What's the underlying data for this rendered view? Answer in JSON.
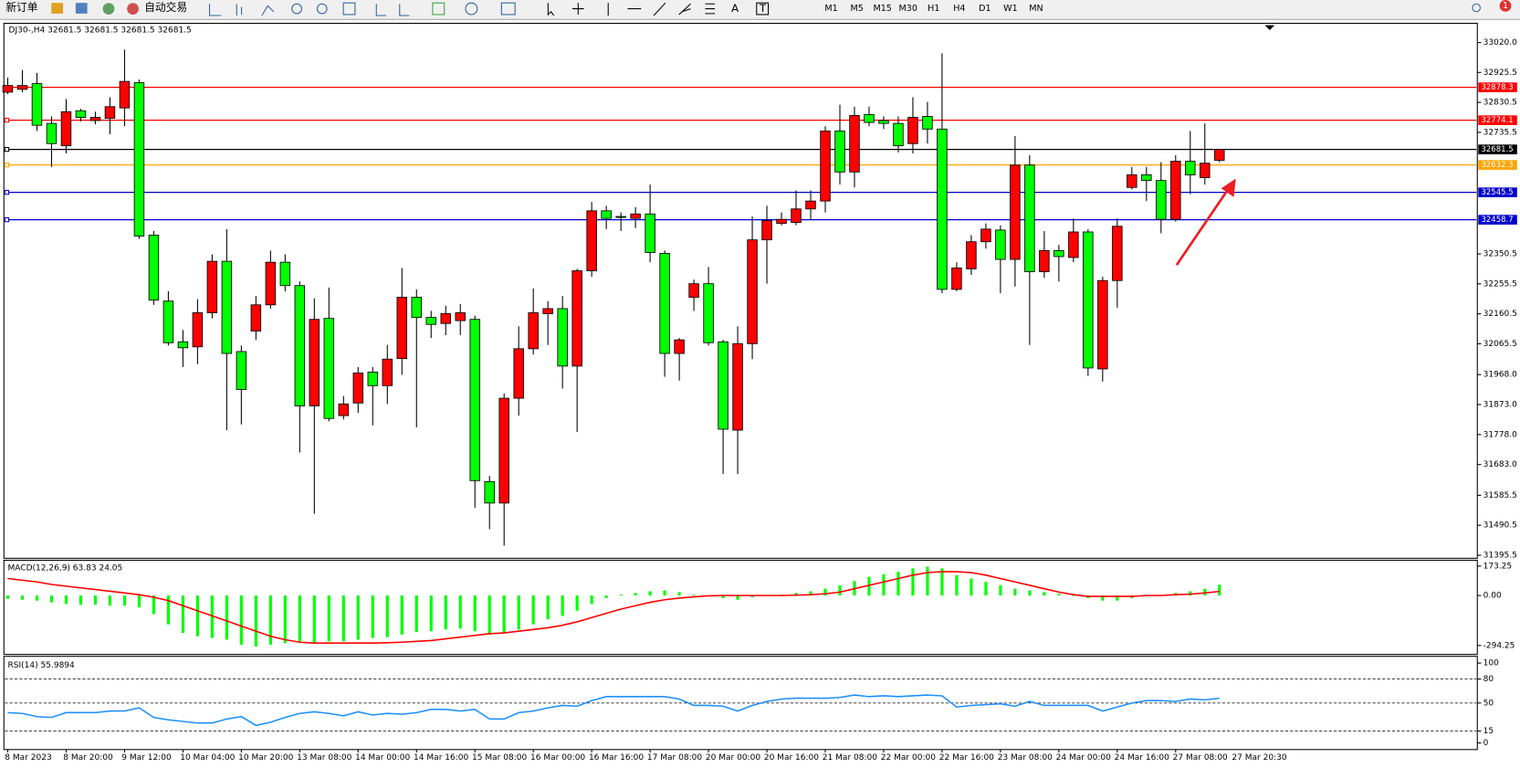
{
  "toolbar": {
    "new_order": "新订单",
    "auto_trade": "自动交易",
    "tools": [
      "A",
      "T"
    ],
    "timeframes": [
      "M1",
      "M5",
      "M15",
      "M30",
      "H1",
      "H4",
      "D1",
      "W1",
      "MN"
    ],
    "badge": "1"
  },
  "chart_data": [
    {
      "type": "candlestick",
      "title": "DJ30-,H4 32681.5 32681.5 32681.5 32681.5",
      "categories": [
        "8 Mar 2023",
        null,
        null,
        null,
        "8 Mar 20:00",
        null,
        null,
        null,
        "9 Mar 12:00",
        null,
        null,
        null,
        "10 Mar 04:00",
        null,
        null,
        null,
        "10 Mar 20:00",
        null,
        null,
        null,
        "13 Mar 08:00",
        null,
        null,
        null,
        "14 Mar 00:00",
        null,
        null,
        null,
        "14 Mar 16:00",
        null,
        null,
        null,
        "15 Mar 08:00",
        null,
        null,
        null,
        "16 Mar 00:00",
        null,
        null,
        null,
        "16 Mar 16:00",
        null,
        null,
        null,
        "17 Mar 08:00",
        null,
        null,
        null,
        "20 Mar 00:00",
        null,
        null,
        null,
        "20 Mar 16:00",
        null,
        null,
        null,
        "21 Mar 08:00",
        null,
        null,
        null,
        "22 Mar 00:00",
        null,
        null,
        null,
        "22 Mar 16:00",
        null,
        null,
        null,
        "23 Mar 08:00",
        null,
        null,
        null,
        "24 Mar 00:00",
        null,
        null,
        null,
        "24 Mar 16:00",
        null,
        null,
        null,
        "27 Mar 08:00",
        null,
        null,
        null
      ],
      "cursor_label": "27 Mar 20:30",
      "open": [
        32863,
        32872,
        32890,
        32764,
        32693,
        32804,
        32773,
        32780,
        32813,
        32893,
        32410,
        32201,
        32072,
        32056,
        32164,
        32327,
        32041,
        32106,
        32189,
        32324,
        32250,
        31869,
        32146,
        31838,
        31878,
        31976,
        31933,
        32019,
        32213,
        32149,
        32130,
        32139,
        32143,
        31629,
        31561,
        31893,
        32050,
        32161,
        32177,
        31995,
        32297,
        32487,
        32469,
        32463,
        32477,
        32352,
        32035,
        32213,
        32256,
        32072,
        31792,
        32066,
        32395,
        32447,
        32450,
        32493,
        32518,
        32740,
        32610,
        32792,
        32773,
        32764,
        32700,
        32786,
        32746,
        32238,
        32303,
        32389,
        32426,
        32333,
        32632,
        32294,
        32361,
        32339,
        32420,
        31986,
        32266,
        32561,
        32601,
        32583,
        32460,
        32644,
        32592,
        32647
      ],
      "high": [
        32909,
        32933,
        32924,
        32786,
        32841,
        32810,
        32801,
        32847,
        32998,
        32903,
        32423,
        32232,
        32109,
        32207,
        32349,
        32429,
        32060,
        32217,
        32361,
        32349,
        32263,
        32210,
        32244,
        31900,
        31992,
        31992,
        32062,
        32306,
        32238,
        32170,
        32186,
        32192,
        32155,
        31647,
        31908,
        32121,
        32241,
        32201,
        32217,
        32303,
        32515,
        32503,
        32482,
        32499,
        32570,
        32361,
        32084,
        32269,
        32309,
        32078,
        32121,
        32469,
        32503,
        32482,
        32552,
        32552,
        32755,
        32823,
        32817,
        32817,
        32786,
        32786,
        32847,
        32832,
        32986,
        32324,
        32410,
        32447,
        32441,
        32724,
        32663,
        32423,
        32379,
        32463,
        32429,
        32278,
        32463,
        32626,
        32626,
        32641,
        32663,
        32740,
        32764,
        32681.5
      ],
      "low": [
        32857,
        32863,
        32740,
        32626,
        32669,
        32770,
        32761,
        32730,
        32755,
        32398,
        32189,
        32060,
        31992,
        32001,
        32146,
        31792,
        31810,
        32078,
        32177,
        32232,
        31721,
        31527,
        31820,
        31826,
        31847,
        31807,
        31875,
        31967,
        31801,
        32084,
        32093,
        32093,
        31546,
        31478,
        31426,
        31838,
        32032,
        32062,
        31924,
        31786,
        32278,
        32429,
        32423,
        32432,
        32324,
        31961,
        31949,
        32170,
        32060,
        31653,
        31653,
        32017,
        32256,
        32441,
        32441,
        32460,
        32482,
        32570,
        32561,
        32755,
        32746,
        32672,
        32669,
        32700,
        32226,
        32232,
        32284,
        32367,
        32226,
        32247,
        32062,
        32275,
        32263,
        32324,
        31964,
        31946,
        32180,
        32555,
        32518,
        32416,
        32453,
        32540,
        32570,
        32641
      ],
      "close": [
        32884,
        32884,
        32758,
        32700,
        32801,
        32783,
        32783,
        32817,
        32897,
        32407,
        32204,
        32069,
        32053,
        32164,
        32327,
        32035,
        31921,
        32189,
        32324,
        32250,
        31869,
        32143,
        31829,
        31875,
        31973,
        31933,
        32017,
        32213,
        32149,
        32127,
        32161,
        32164,
        31632,
        31561,
        31893,
        32050,
        32164,
        32177,
        31995,
        32297,
        32487,
        32463,
        32466,
        32477,
        32355,
        32035,
        32078,
        32256,
        32069,
        31795,
        32066,
        32395,
        32456,
        32460,
        32493,
        32518,
        32740,
        32610,
        32789,
        32767,
        32764,
        32693,
        32783,
        32746,
        32238,
        32306,
        32389,
        32429,
        32333,
        32632,
        32294,
        32361,
        32342,
        32420,
        31989,
        32266,
        32438,
        32601,
        32583,
        32460,
        32644,
        32601,
        32638,
        32681.5
      ],
      "up_color": "#ff0000",
      "down_color": "#00ff00",
      "ylim": [
        31389,
        33075
      ],
      "yticks": [
        {
          "value": 33020,
          "label": "33020.0"
        },
        32925.5,
        32830.5,
        32735.5,
        32350.5,
        32255.5,
        32160.5,
        32065.5,
        {
          "value": 31968,
          "label": "31968.0"
        },
        {
          "value": 31873,
          "label": "31873.0"
        },
        {
          "value": 31778,
          "label": "31778.0"
        },
        {
          "value": 31683,
          "label": "31683.0"
        },
        31585.5,
        31490.5,
        31395.5
      ],
      "hlines": [
        {
          "value": 32878.3,
          "color": "#ff0000"
        },
        {
          "value": 32774.1,
          "color": "#ff0000"
        },
        {
          "value": 32681.5,
          "color": "#000000"
        },
        {
          "value": 32632.3,
          "color": "#ffa500"
        },
        {
          "value": 32545.5,
          "color": "#0000cd"
        },
        {
          "value": 32458.7,
          "color": "#0000cd"
        }
      ]
    },
    {
      "type": "macd",
      "title": "MACD(12,26,9) 63.83 24.05",
      "histogram": {
        "color": "#00ff00",
        "values": [
          -20,
          -25,
          -30,
          -40,
          -50,
          -55,
          -55,
          -60,
          -60,
          -70,
          -110,
          -170,
          -220,
          -240,
          -250,
          -260,
          -290,
          -300,
          -290,
          -280,
          -270,
          -280,
          -270,
          -270,
          -260,
          -250,
          -245,
          -230,
          -215,
          -210,
          -200,
          -195,
          -210,
          -230,
          -220,
          -200,
          -170,
          -140,
          -120,
          -90,
          -50,
          -15,
          5,
          15,
          25,
          30,
          20,
          5,
          0,
          -15,
          -25,
          -10,
          0,
          5,
          15,
          25,
          40,
          60,
          85,
          110,
          125,
          140,
          160,
          170,
          160,
          120,
          100,
          80,
          60,
          40,
          30,
          20,
          10,
          0,
          -15,
          -30,
          -30,
          -15,
          -5,
          0,
          15,
          25,
          40,
          63.83
        ]
      },
      "signal": {
        "color": "#ff0000",
        "values": [
          100,
          90,
          80,
          65,
          55,
          45,
          35,
          25,
          15,
          5,
          -10,
          -30,
          -60,
          -90,
          -120,
          -150,
          -180,
          -210,
          -240,
          -260,
          -275,
          -280,
          -280,
          -280,
          -280,
          -280,
          -278,
          -275,
          -270,
          -265,
          -255,
          -245,
          -235,
          -225,
          -220,
          -210,
          -200,
          -190,
          -175,
          -155,
          -130,
          -105,
          -80,
          -60,
          -40,
          -25,
          -15,
          -8,
          -2,
          0,
          0,
          0,
          0,
          0,
          2,
          5,
          10,
          20,
          40,
          60,
          80,
          100,
          120,
          135,
          140,
          140,
          135,
          120,
          100,
          80,
          60,
          40,
          20,
          5,
          -5,
          -5,
          -5,
          -5,
          0,
          0,
          5,
          8,
          15,
          24.05
        ]
      },
      "ylim": [
        -341,
        202
      ],
      "yticks": [
        173.25,
        {
          "value": 0,
          "label": "0.00"
        },
        -294.25
      ]
    },
    {
      "type": "rsi",
      "title": "RSI(14) 55.9894",
      "color": "#1e90ff",
      "values": [
        38,
        37,
        33,
        32,
        38,
        38,
        38,
        40,
        40,
        44,
        32,
        29,
        27,
        25,
        25,
        30,
        33,
        22,
        26,
        32,
        37,
        39,
        37,
        34,
        39,
        35,
        37,
        36,
        38,
        42,
        42,
        40,
        42,
        30,
        30,
        38,
        40,
        44,
        47,
        46,
        53,
        58,
        58,
        58,
        58,
        58,
        55,
        47,
        47,
        46,
        40,
        47,
        52,
        55,
        56,
        56,
        56,
        57,
        60,
        58,
        59,
        58,
        59,
        60,
        59,
        45,
        47,
        48,
        49,
        46,
        52,
        47,
        47,
        47,
        47,
        40,
        45,
        50,
        53,
        53,
        52,
        55,
        54,
        55.9894
      ],
      "ylim": [
        -7,
        106
      ],
      "yticks": [
        100,
        80,
        50,
        15,
        0
      ],
      "levels": [
        80,
        50,
        15
      ]
    }
  ]
}
